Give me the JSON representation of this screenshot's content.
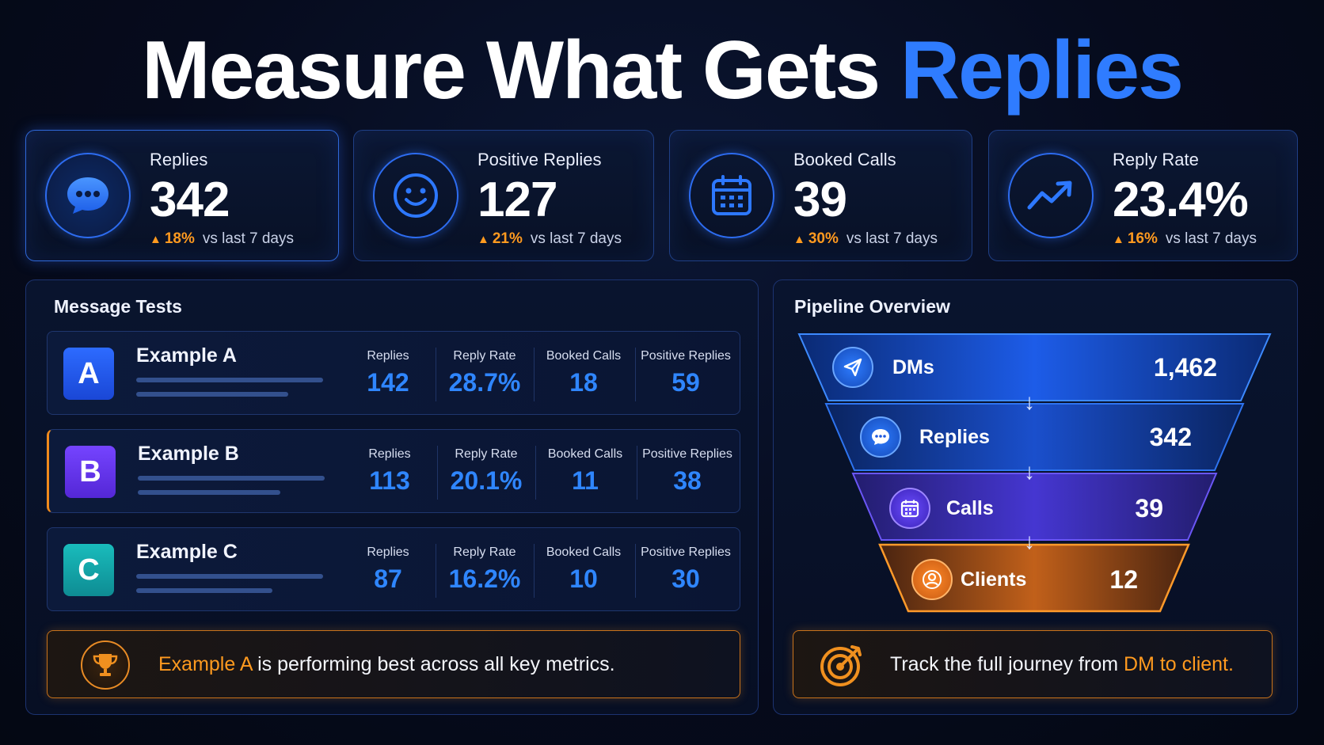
{
  "title": {
    "main": "Measure What Gets",
    "accent": "Replies"
  },
  "kpis": [
    {
      "label": "Replies",
      "value": "342",
      "delta": "18%",
      "compare": "vs last 7 days",
      "icon": "chat-bubble-icon"
    },
    {
      "label": "Positive Replies",
      "value": "127",
      "delta": "21%",
      "compare": "vs last 7 days",
      "icon": "smiley-icon"
    },
    {
      "label": "Booked Calls",
      "value": "39",
      "delta": "30%",
      "compare": "vs last 7 days",
      "icon": "calendar-icon"
    },
    {
      "label": "Reply Rate",
      "value": "23.4%",
      "delta": "16%",
      "compare": "vs last 7 days",
      "icon": "trend-up-icon"
    }
  ],
  "message_tests": {
    "title": "Message Tests",
    "metric_labels": {
      "replies": "Replies",
      "reply_rate": "Reply Rate",
      "booked_calls": "Booked Calls",
      "positive_replies": "Positive Replies"
    },
    "rows": [
      {
        "badge": "A",
        "name": "Example A",
        "replies": "142",
        "reply_rate": "28.7%",
        "booked_calls": "18",
        "positive_replies": "59"
      },
      {
        "badge": "B",
        "name": "Example B",
        "replies": "113",
        "reply_rate": "20.1%",
        "booked_calls": "11",
        "positive_replies": "38"
      },
      {
        "badge": "C",
        "name": "Example C",
        "replies": "87",
        "reply_rate": "16.2%",
        "booked_calls": "10",
        "positive_replies": "30"
      }
    ],
    "callout": {
      "highlight": "Example A",
      "rest": " is performing best across all key metrics."
    }
  },
  "pipeline": {
    "title": "Pipeline Overview",
    "stages": [
      {
        "label": "DMs",
        "value": "1,462",
        "icon": "paper-plane-icon"
      },
      {
        "label": "Replies",
        "value": "342",
        "icon": "chat-bubble-icon"
      },
      {
        "label": "Calls",
        "value": "39",
        "icon": "calendar-icon"
      },
      {
        "label": "Clients",
        "value": "12",
        "icon": "user-icon"
      }
    ],
    "callout": {
      "prefix": "Track the full journey from ",
      "highlight": "DM to client."
    }
  },
  "colors": {
    "accent_blue": "#2f7cff",
    "accent_orange": "#ff9a1f",
    "badge_a": "#2d6bff",
    "badge_b": "#7544ff",
    "badge_c": "#19bcbc",
    "background": "#060b1d"
  }
}
